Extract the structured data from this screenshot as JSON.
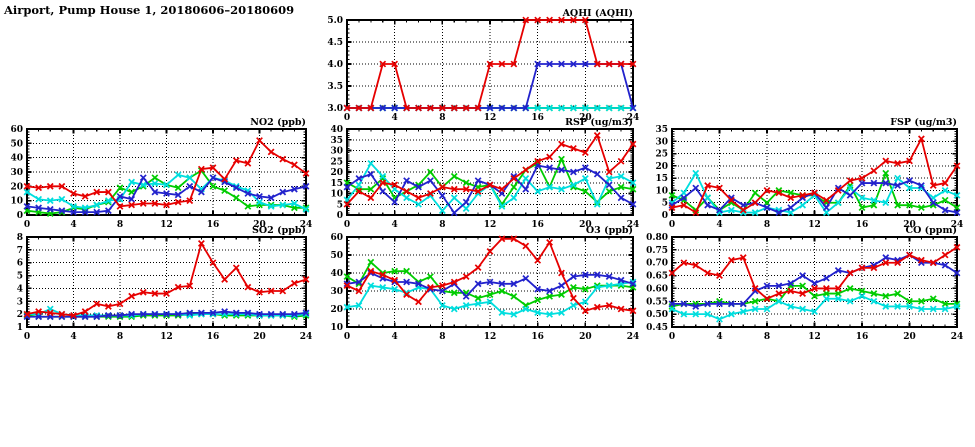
{
  "page_title": "Airport, Pump House 1, 20180606–20180609",
  "colors": {
    "red": "#e60000",
    "blue": "#2222cc",
    "green": "#00cc00",
    "cyan": "#00dede",
    "frame": "#000000",
    "grid": "#000000",
    "background": "#ffffff"
  },
  "chart_data": [
    {
      "id": "aqhi",
      "type": "line",
      "title": "AQHI (AQHI)",
      "xlabel": "",
      "ylabel": "",
      "grid": true,
      "legend": "none",
      "xlim": [
        0,
        24
      ],
      "xticks": [
        0,
        4,
        8,
        12,
        16,
        20,
        24
      ],
      "x_start": 0,
      "x_step": 1,
      "ylim": [
        3,
        5
      ],
      "yticks": [
        3,
        3.5,
        4,
        4.5,
        5
      ],
      "ytick_labels": [
        "3.0",
        "3.5",
        "4.0",
        "4.5",
        "5.0"
      ],
      "series": [
        {
          "name": "green",
          "color": "green",
          "values": [
            3,
            3,
            3,
            3,
            3,
            3,
            3,
            3,
            3,
            3,
            3,
            3,
            3,
            3,
            3,
            3,
            3,
            3,
            3,
            3,
            3,
            3,
            3,
            3,
            3
          ]
        },
        {
          "name": "cyan",
          "color": "cyan",
          "values": [
            3,
            3,
            3,
            3,
            3,
            3,
            3,
            3,
            3,
            3,
            3,
            3,
            3,
            3,
            3,
            3,
            3,
            3,
            3,
            3,
            3,
            3,
            3,
            3,
            3
          ]
        },
        {
          "name": "blue",
          "color": "blue",
          "values": [
            3,
            3,
            3,
            3,
            3,
            3,
            3,
            3,
            3,
            3,
            3,
            3,
            3,
            3,
            3,
            3,
            4,
            4,
            4,
            4,
            4,
            4,
            4,
            4,
            3
          ]
        },
        {
          "name": "red",
          "color": "red",
          "values": [
            3,
            3,
            3,
            4,
            4,
            3,
            3,
            3,
            3,
            3,
            3,
            3,
            4,
            4,
            4,
            5,
            5,
            5,
            5,
            5,
            5,
            4,
            4,
            4,
            4
          ]
        }
      ]
    },
    {
      "id": "no2",
      "type": "line",
      "title": "NO2 (ppb)",
      "xlabel": "",
      "ylabel": "",
      "grid": true,
      "legend": "none",
      "xlim": [
        0,
        24
      ],
      "xticks": [
        0,
        4,
        8,
        12,
        16,
        20,
        24
      ],
      "x_start": 0,
      "x_step": 1,
      "ylim": [
        0,
        60
      ],
      "yticks": [
        0,
        10,
        20,
        30,
        40,
        50,
        60
      ],
      "ytick_labels": [
        "0",
        "10",
        "20",
        "30",
        "40",
        "50",
        "60"
      ],
      "series": [
        {
          "name": "green",
          "color": "green",
          "values": [
            3,
            2,
            1,
            2,
            5,
            4,
            7,
            9,
            19,
            16,
            20,
            26,
            21,
            19,
            26,
            31,
            20,
            17,
            12,
            6,
            7,
            7,
            7,
            5,
            5
          ]
        },
        {
          "name": "cyan",
          "color": "cyan",
          "values": [
            16,
            11,
            10,
            11,
            6,
            5,
            7,
            10,
            11,
            23,
            21,
            22,
            21,
            28,
            26,
            18,
            26,
            24,
            20,
            17,
            9,
            6,
            7,
            8,
            4
          ]
        },
        {
          "name": "blue",
          "color": "blue",
          "values": [
            6,
            5,
            4,
            3,
            2,
            2,
            2,
            3,
            13,
            11,
            26,
            16,
            15,
            14,
            20,
            16,
            26,
            23,
            19,
            15,
            13,
            12,
            16,
            18,
            20
          ]
        },
        {
          "name": "red",
          "color": "red",
          "values": [
            20,
            19,
            20,
            20,
            15,
            13,
            16,
            16,
            6,
            7,
            8,
            8,
            7,
            9,
            10,
            32,
            33,
            25,
            38,
            36,
            52,
            44,
            39,
            35,
            29
          ]
        }
      ]
    },
    {
      "id": "rsp",
      "type": "line",
      "title": "RSP (ug/m3)",
      "xlabel": "",
      "ylabel": "",
      "grid": true,
      "legend": "none",
      "xlim": [
        0,
        24
      ],
      "xticks": [
        0,
        4,
        8,
        12,
        16,
        20,
        24
      ],
      "x_start": 0,
      "x_step": 1,
      "ylim": [
        0,
        40
      ],
      "yticks": [
        0,
        5,
        10,
        15,
        20,
        25,
        30,
        35,
        40
      ],
      "ytick_labels": [
        "0",
        "5",
        "10",
        "15",
        "20",
        "25",
        "30",
        "35",
        "40"
      ],
      "series": [
        {
          "name": "green",
          "color": "green",
          "values": [
            15,
            12,
            12,
            17,
            8,
            11,
            14,
            20,
            13,
            18,
            15,
            13,
            14,
            5,
            13,
            21,
            24,
            13,
            26,
            13,
            11,
            6,
            11,
            13,
            12
          ]
        },
        {
          "name": "cyan",
          "color": "cyan",
          "values": [
            7,
            14,
            24,
            18,
            12,
            8,
            5,
            9,
            2,
            8,
            3,
            10,
            14,
            4,
            8,
            17,
            11,
            13,
            12,
            14,
            17,
            5,
            17,
            18,
            15
          ]
        },
        {
          "name": "blue",
          "color": "blue",
          "values": [
            13,
            17,
            19,
            11,
            6,
            16,
            13,
            16,
            9,
            1,
            6,
            16,
            14,
            10,
            18,
            12,
            23,
            22,
            21,
            20,
            22,
            19,
            14,
            8,
            5
          ]
        },
        {
          "name": "red",
          "color": "red",
          "values": [
            5,
            11,
            8,
            15,
            14,
            11,
            8,
            10,
            13,
            12,
            12,
            11,
            14,
            12,
            17,
            21,
            25,
            27,
            33,
            31,
            29,
            37,
            20,
            25,
            33
          ]
        }
      ]
    },
    {
      "id": "fsp",
      "type": "line",
      "title": "FSP (ug/m3)",
      "xlabel": "",
      "ylabel": "",
      "grid": true,
      "legend": "none",
      "xlim": [
        0,
        24
      ],
      "xticks": [
        0,
        4,
        8,
        12,
        16,
        20,
        24
      ],
      "x_start": 0,
      "x_step": 1,
      "ylim": [
        0,
        35
      ],
      "yticks": [
        0,
        5,
        10,
        15,
        20,
        25,
        30,
        35
      ],
      "ytick_labels": [
        "0",
        "5",
        "10",
        "15",
        "20",
        "25",
        "30",
        "35"
      ],
      "series": [
        {
          "name": "green",
          "color": "green",
          "values": [
            8,
            6,
            2,
            7,
            2,
            5,
            2,
            9,
            5,
            10,
            9,
            8,
            8,
            5,
            5,
            12,
            3,
            4,
            17,
            4,
            4,
            3,
            4,
            6,
            3
          ]
        },
        {
          "name": "cyan",
          "color": "cyan",
          "values": [
            5,
            9,
            17,
            7,
            1,
            2,
            1,
            1,
            3,
            2,
            1,
            4,
            8,
            1,
            5,
            11,
            7,
            6,
            5,
            15,
            11,
            11,
            7,
            10,
            8
          ]
        },
        {
          "name": "blue",
          "color": "blue",
          "values": [
            4,
            7,
            11,
            4,
            2,
            7,
            4,
            5,
            3,
            1,
            3,
            7,
            9,
            3,
            11,
            8,
            13,
            13,
            13,
            12,
            14,
            12,
            5,
            2,
            1
          ]
        },
        {
          "name": "red",
          "color": "red",
          "values": [
            3,
            4,
            1,
            12,
            11,
            6,
            2,
            5,
            10,
            9,
            7,
            8,
            9,
            6,
            10,
            14,
            15,
            18,
            22,
            21,
            22,
            31,
            12,
            13,
            20
          ]
        }
      ]
    },
    {
      "id": "so2",
      "type": "line",
      "title": "SO2 (ppb)",
      "xlabel": "",
      "ylabel": "",
      "grid": true,
      "legend": "none",
      "xlim": [
        0,
        24
      ],
      "xticks": [
        0,
        4,
        8,
        12,
        16,
        20,
        24
      ],
      "x_start": 0,
      "x_step": 1,
      "ylim": [
        1,
        8
      ],
      "yticks": [
        1,
        2,
        3,
        4,
        5,
        6,
        7,
        8
      ],
      "ytick_labels": [
        "1",
        "2",
        "3",
        "4",
        "5",
        "6",
        "7",
        "8"
      ],
      "series": [
        {
          "name": "green",
          "color": "green",
          "values": [
            1.9,
            1.8,
            1.8,
            1.8,
            1.8,
            1.8,
            1.8,
            1.8,
            1.8,
            1.8,
            1.9,
            1.9,
            1.9,
            1.9,
            2.0,
            2.0,
            2.0,
            1.9,
            1.9,
            1.9,
            1.9,
            1.9,
            1.9,
            1.8,
            1.9
          ]
        },
        {
          "name": "cyan",
          "color": "cyan",
          "values": [
            2.0,
            2.0,
            2.4,
            2.0,
            1.9,
            1.9,
            1.9,
            1.9,
            1.9,
            1.9,
            2.0,
            2.0,
            2.0,
            2.0,
            1.9,
            2.0,
            2.0,
            2.0,
            2.0,
            2.0,
            1.9,
            1.9,
            1.9,
            1.9,
            2.0
          ]
        },
        {
          "name": "blue",
          "color": "blue",
          "values": [
            1.8,
            1.8,
            1.8,
            1.8,
            1.8,
            1.8,
            1.8,
            1.9,
            1.9,
            2.0,
            2.0,
            2.0,
            2.0,
            2.0,
            2.1,
            2.1,
            2.1,
            2.2,
            2.1,
            2.1,
            2.0,
            2.0,
            2.0,
            2.0,
            2.1
          ]
        },
        {
          "name": "red",
          "color": "red",
          "values": [
            2.0,
            2.2,
            2.1,
            2.0,
            1.9,
            2.2,
            2.8,
            2.6,
            2.8,
            3.4,
            3.7,
            3.6,
            3.6,
            4.1,
            4.2,
            7.5,
            6.0,
            4.7,
            5.6,
            4.1,
            3.7,
            3.8,
            3.8,
            4.4,
            4.7
          ]
        }
      ]
    },
    {
      "id": "o3",
      "type": "line",
      "title": "O3 (ppb)",
      "xlabel": "",
      "ylabel": "",
      "grid": true,
      "legend": "none",
      "xlim": [
        0,
        24
      ],
      "xticks": [
        0,
        4,
        8,
        12,
        16,
        20,
        24
      ],
      "x_start": 0,
      "x_step": 1,
      "ylim": [
        10,
        60
      ],
      "yticks": [
        10,
        20,
        30,
        40,
        50,
        60
      ],
      "ytick_labels": [
        "10",
        "20",
        "30",
        "40",
        "50",
        "60"
      ],
      "series": [
        {
          "name": "green",
          "color": "green",
          "values": [
            38,
            34,
            46,
            40,
            41,
            41,
            35,
            38,
            30,
            29,
            29,
            26,
            28,
            30,
            27,
            22,
            25,
            27,
            28,
            32,
            31,
            33,
            33,
            33,
            32
          ]
        },
        {
          "name": "cyan",
          "color": "cyan",
          "values": [
            21,
            22,
            33,
            32,
            31,
            29,
            32,
            31,
            22,
            20,
            22,
            23,
            24,
            18,
            17,
            20,
            18,
            17,
            18,
            22,
            24,
            32,
            33,
            34,
            35
          ]
        },
        {
          "name": "blue",
          "color": "blue",
          "values": [
            34,
            35,
            40,
            37,
            35,
            35,
            34,
            31,
            30,
            34,
            27,
            34,
            35,
            34,
            34,
            37,
            31,
            30,
            33,
            38,
            39,
            39,
            38,
            36,
            34
          ]
        },
        {
          "name": "red",
          "color": "red",
          "values": [
            33,
            30,
            41,
            39,
            36,
            28,
            24,
            32,
            33,
            35,
            38,
            43,
            52,
            59,
            59,
            55,
            47,
            57,
            40,
            26,
            19,
            21,
            22,
            20,
            19
          ]
        }
      ]
    },
    {
      "id": "co",
      "type": "line",
      "title": "CO (ppm)",
      "xlabel": "",
      "ylabel": "",
      "grid": true,
      "legend": "none",
      "xlim": [
        0,
        24
      ],
      "xticks": [
        0,
        4,
        8,
        12,
        16,
        20,
        24
      ],
      "x_start": 0,
      "x_step": 1,
      "ylim": [
        0.45,
        0.8
      ],
      "yticks": [
        0.45,
        0.5,
        0.55,
        0.6,
        0.65,
        0.7,
        0.75,
        0.8
      ],
      "ytick_labels": [
        "0.45",
        "0.50",
        "0.55",
        "0.60",
        "0.65",
        "0.70",
        "0.75",
        "0.80"
      ],
      "series": [
        {
          "name": "green",
          "color": "green",
          "values": [
            0.53,
            0.54,
            0.54,
            0.54,
            0.55,
            0.54,
            0.54,
            0.55,
            0.56,
            0.55,
            0.61,
            0.61,
            0.57,
            0.58,
            0.58,
            0.6,
            0.59,
            0.58,
            0.57,
            0.58,
            0.55,
            0.55,
            0.56,
            0.54,
            0.54
          ]
        },
        {
          "name": "cyan",
          "color": "cyan",
          "values": [
            0.52,
            0.5,
            0.5,
            0.5,
            0.48,
            0.5,
            0.51,
            0.52,
            0.52,
            0.55,
            0.53,
            0.52,
            0.51,
            0.56,
            0.56,
            0.55,
            0.57,
            0.55,
            0.53,
            0.53,
            0.53,
            0.52,
            0.52,
            0.52,
            0.53
          ]
        },
        {
          "name": "blue",
          "color": "blue",
          "values": [
            0.54,
            0.54,
            0.53,
            0.54,
            0.54,
            0.54,
            0.54,
            0.59,
            0.61,
            0.61,
            0.62,
            0.65,
            0.62,
            0.64,
            0.67,
            0.66,
            0.68,
            0.69,
            0.72,
            0.71,
            0.73,
            0.7,
            0.7,
            0.69,
            0.66
          ]
        },
        {
          "name": "red",
          "color": "red",
          "values": [
            0.66,
            0.7,
            0.69,
            0.66,
            0.65,
            0.71,
            0.72,
            0.6,
            0.56,
            0.58,
            0.59,
            0.58,
            0.6,
            0.6,
            0.6,
            0.66,
            0.68,
            0.68,
            0.7,
            0.7,
            0.73,
            0.71,
            0.7,
            0.73,
            0.76
          ]
        }
      ]
    }
  ]
}
